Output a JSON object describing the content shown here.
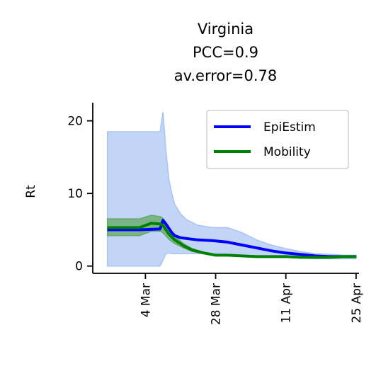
{
  "chart_data": {
    "type": "line",
    "title": [
      "Virginia",
      "PCC=0.9",
      "av.error=0.78"
    ],
    "ylabel": "Rt",
    "xlabel": "",
    "yticks": [
      0,
      10,
      20
    ],
    "ylim": [
      -1,
      22.5
    ],
    "xticks": [
      {
        "label": "4 Mar",
        "x": 32
      },
      {
        "label": "28 Mar",
        "x": 56
      },
      {
        "label": "11 Apr",
        "x": 80
      },
      {
        "label": "25 Apr",
        "x": 104
      }
    ],
    "xlim": [
      14,
      105
    ],
    "legend": {
      "position": "top-right"
    },
    "series": [
      {
        "name": "EpiEstim",
        "color": "#0000ff",
        "band_color": "#a9c3f2",
        "x": [
          19,
          24,
          30,
          37,
          38,
          39,
          40,
          41,
          42,
          44,
          46,
          50,
          55,
          60,
          65,
          70,
          75,
          80,
          85,
          90,
          95,
          100,
          104
        ],
        "y": [
          5.0,
          5.0,
          5.0,
          5.1,
          6.3,
          5.8,
          5.2,
          4.6,
          4.2,
          3.9,
          3.8,
          3.6,
          3.5,
          3.3,
          2.9,
          2.5,
          2.1,
          1.8,
          1.6,
          1.4,
          1.3,
          1.3,
          1.3
        ],
        "upper": [
          18.5,
          18.5,
          18.5,
          18.5,
          21.2,
          16.0,
          12.0,
          10.0,
          8.5,
          7.2,
          6.4,
          5.6,
          5.3,
          5.3,
          4.6,
          3.6,
          2.9,
          2.4,
          2.0,
          1.7,
          1.6,
          1.5,
          1.5
        ],
        "lower": [
          0.0,
          0.0,
          0.0,
          0.0,
          0.8,
          1.7,
          1.8,
          1.7,
          1.7,
          1.7,
          1.7,
          1.7,
          1.7,
          1.6,
          1.5,
          1.4,
          1.3,
          1.2,
          1.1,
          1.0,
          1.0,
          1.0,
          1.0
        ]
      },
      {
        "name": "Mobility",
        "color": "#008000",
        "band_color": "#63a863",
        "x": [
          19,
          24,
          30,
          34,
          37,
          38,
          40,
          42,
          45,
          48,
          52,
          56,
          60,
          65,
          70,
          75,
          80,
          85,
          90,
          95,
          100,
          104
        ],
        "y": [
          5.3,
          5.3,
          5.3,
          5.9,
          5.8,
          5.6,
          4.4,
          3.6,
          2.8,
          2.2,
          1.8,
          1.5,
          1.5,
          1.4,
          1.3,
          1.3,
          1.3,
          1.2,
          1.2,
          1.2,
          1.3,
          1.3
        ],
        "upper": [
          6.5,
          6.5,
          6.5,
          7.0,
          6.8,
          6.6,
          5.1,
          4.1,
          3.1,
          2.4,
          1.9,
          1.6,
          1.6,
          1.5,
          1.4,
          1.4,
          1.4,
          1.3,
          1.3,
          1.3,
          1.4,
          1.4
        ],
        "lower": [
          4.2,
          4.2,
          4.2,
          4.8,
          4.8,
          4.6,
          3.7,
          3.1,
          2.5,
          2.0,
          1.7,
          1.4,
          1.4,
          1.3,
          1.2,
          1.2,
          1.2,
          1.1,
          1.1,
          1.1,
          1.2,
          1.2
        ]
      }
    ]
  }
}
